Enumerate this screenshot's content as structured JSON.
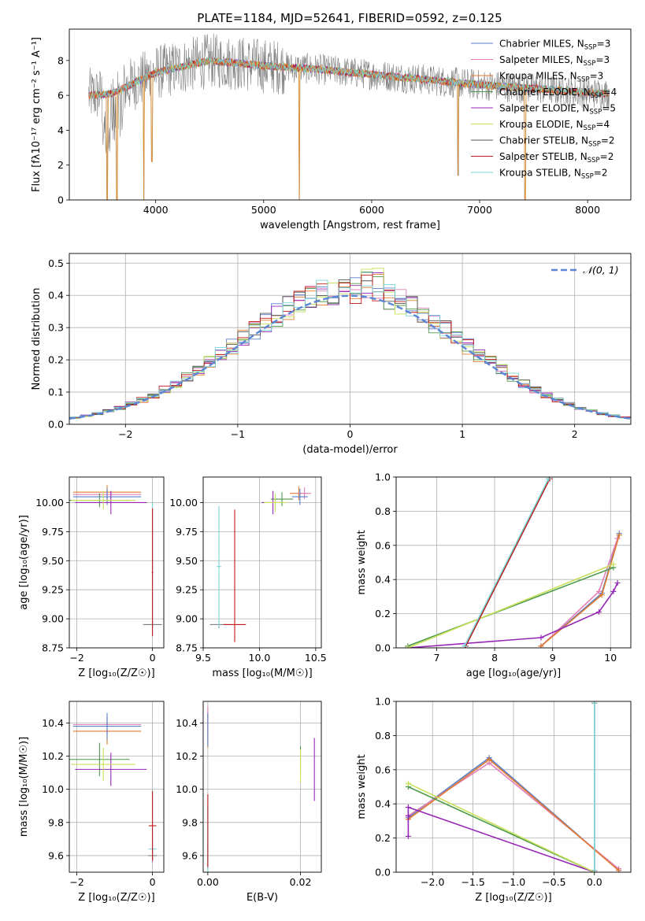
{
  "figure_title": "PLATE=1184, MJD=52641, FIBERID=0592, z=0.125",
  "colors": {
    "chabrier_miles": "#5b7ec9",
    "salpeter_miles": "#e07fb8",
    "kroupa_miles": "#e07b30",
    "chabrier_elodie": "#4d9a4d",
    "salpeter_elodie": "#9526b4",
    "kroupa_elodie": "#c8e05a",
    "chabrier_stelib": "#7f7f7f",
    "salpeter_stelib": "#c01818",
    "kroupa_stelib": "#78d6d9",
    "normal_curve": "#5b86d6"
  },
  "chart_data": [
    {
      "id": "spectrum",
      "type": "line",
      "title": "PLATE=1184, MJD=52641, FIBERID=0592, z=0.125",
      "xlabel": "wavelength [Angstrom, rest frame]",
      "ylabel": "Flux [fλ10⁻¹⁷ erg cm⁻² s⁻¹ A⁻¹]",
      "xlim": [
        3200,
        8400
      ],
      "ylim": [
        0,
        9.8
      ],
      "xticks": [
        4000,
        5000,
        6000,
        7000,
        8000
      ],
      "yticks": [
        0,
        2,
        4,
        6,
        8
      ],
      "grid": false,
      "legend": "right",
      "x_range": [
        3380,
        8200
      ],
      "continuum_anchors": {
        "x": [
          3380,
          3600,
          4000,
          4500,
          5000,
          5500,
          6000,
          6500,
          7000,
          7500,
          8000,
          8200
        ],
        "y": [
          6.0,
          6.1,
          7.3,
          8.0,
          7.7,
          7.5,
          7.2,
          6.9,
          6.6,
          6.4,
          6.15,
          6.1
        ]
      },
      "absorption_lines": [
        {
          "x": 3550,
          "y": 0
        },
        {
          "x": 3640,
          "y": 0
        },
        {
          "x": 3890,
          "y": 0
        },
        {
          "x": 3965,
          "y": 2.2
        },
        {
          "x": 5330,
          "y": 0
        },
        {
          "x": 6800,
          "y": 1.4
        },
        {
          "x": 7420,
          "y": 0
        }
      ],
      "series": [
        {
          "name": "Chabrier MILES, N",
          "sub": "SSP",
          "eq": "=3",
          "color": "#5b7ec9"
        },
        {
          "name": "Salpeter MILES, N",
          "sub": "SSP",
          "eq": "=3",
          "color": "#e07fb8"
        },
        {
          "name": "Kroupa MILES, N",
          "sub": "SSP",
          "eq": "=3",
          "color": "#e07b30"
        },
        {
          "name": "Chabrier ELODIE, N",
          "sub": "SSP",
          "eq": "=4",
          "color": "#4d9a4d"
        },
        {
          "name": "Salpeter ELODIE, N",
          "sub": "SSP",
          "eq": "=5",
          "color": "#9526b4"
        },
        {
          "name": "Kroupa ELODIE, N",
          "sub": "SSP",
          "eq": "=4",
          "color": "#c8e05a"
        },
        {
          "name": "Chabrier STELIB, N",
          "sub": "SSP",
          "eq": "=2",
          "color": "#555555"
        },
        {
          "name": "Salpeter STELIB, N",
          "sub": "SSP",
          "eq": "=2",
          "color": "#c01818"
        },
        {
          "name": "Kroupa STELIB, N",
          "sub": "SSP",
          "eq": "=2",
          "color": "#78d6d9"
        }
      ]
    },
    {
      "id": "residuals",
      "type": "bar",
      "xlabel": "(data-model)/error",
      "ylabel": "Normed distribution",
      "xlim": [
        -2.5,
        2.5
      ],
      "ylim": [
        0,
        0.53
      ],
      "xticks": [
        -2,
        -1,
        0,
        1,
        2
      ],
      "yticks": [
        0.0,
        0.1,
        0.2,
        0.3,
        0.4,
        0.5
      ],
      "grid": true,
      "legend": "top-right",
      "legend_label": "𝒩(0, 1)",
      "bin_width": 0.1,
      "bin_start": -2.5,
      "base_heights": [
        0.02,
        0.02,
        0.025,
        0.03,
        0.035,
        0.04,
        0.045,
        0.05,
        0.06,
        0.07,
        0.085,
        0.1,
        0.11,
        0.125,
        0.14,
        0.16,
        0.175,
        0.195,
        0.21,
        0.23,
        0.26,
        0.285,
        0.31,
        0.34,
        0.355,
        0.375,
        0.385,
        0.395,
        0.41,
        0.42,
        0.4,
        0.415,
        0.43,
        0.4,
        0.39,
        0.36,
        0.345,
        0.33,
        0.31,
        0.285,
        0.27,
        0.26,
        0.245,
        0.22,
        0.2,
        0.18,
        0.16,
        0.145,
        0.13,
        0.115,
        0.1,
        0.09,
        0.08,
        0.075,
        0.07,
        0.06,
        0.05,
        0.045,
        0.04,
        0.035,
        0.03,
        0.025,
        0.02,
        0.02,
        0.018,
        0.015,
        0.013,
        0.012,
        0.011,
        0.01,
        0.01,
        0.01,
        0.01,
        0.01,
        0.01,
        0.01,
        0.01,
        0.01,
        0.01,
        0.01,
        0.01,
        0.01,
        0.01,
        0.01,
        0.01,
        0.01,
        0.01,
        0.01,
        0.01,
        0.01,
        0.01,
        0.01,
        0.01,
        0.01,
        0.01,
        0.01,
        0.01,
        0.01,
        0.01,
        0.01
      ],
      "series_count": 9
    },
    {
      "id": "age_vs_Z",
      "type": "scatter",
      "xlabel": "Z [log₁₀(Z/Z☉)]",
      "ylabel": "age  [log₁₀(age/yr)]",
      "xlim": [
        -2.2,
        0.3
      ],
      "ylim": [
        8.75,
        10.22
      ],
      "xticks": [
        -2,
        0
      ],
      "yticks": [
        8.75,
        9.0,
        9.25,
        9.5,
        9.75,
        10.0
      ],
      "grid": true,
      "points": [
        {
          "x": -1.2,
          "y": 10.09,
          "xerr": 0.9,
          "yerr": 0.06,
          "color": "#e07b30"
        },
        {
          "x": -1.2,
          "y": 10.07,
          "xerr": 0.9,
          "yerr": 0.05,
          "color": "#e07fb8"
        },
        {
          "x": -1.2,
          "y": 10.05,
          "xerr": 0.9,
          "yerr": 0.07,
          "color": "#5b7ec9"
        },
        {
          "x": -1.4,
          "y": 10.02,
          "xerr": 0.8,
          "yerr": 0.06,
          "color": "#4d9a4d"
        },
        {
          "x": -1.1,
          "y": 10.0,
          "xerr": 0.95,
          "yerr": 0.1,
          "color": "#9526b4"
        },
        {
          "x": -1.3,
          "y": 10.02,
          "xerr": 0.85,
          "yerr": 0.08,
          "color": "#c8e05a"
        },
        {
          "x": 0.0,
          "y": 8.95,
          "xerr": 0.25,
          "yerr": 0.03,
          "color": "#7f7f7f"
        },
        {
          "x": 0.0,
          "y": 9.5,
          "xerr": 0.02,
          "yerr": 0.5,
          "color": "#78d6d9"
        },
        {
          "x": 0.0,
          "y": 9.4,
          "xerr": 0.02,
          "yerr": 0.55,
          "color": "#c01818"
        }
      ]
    },
    {
      "id": "age_vs_mass",
      "type": "scatter",
      "xlabel": "mass [log₁₀(M/M☉)]",
      "ylabel": "",
      "xlim": [
        9.5,
        10.55
      ],
      "ylim": [
        8.75,
        10.22
      ],
      "xticks": [
        9.5,
        10.0,
        10.5
      ],
      "yticks": [
        8.75,
        9.0,
        9.25,
        9.5,
        9.75,
        10.0
      ],
      "grid": true,
      "points": [
        {
          "x": 10.35,
          "y": 10.08,
          "xerr": 0.08,
          "yerr": 0.06,
          "color": "#e07b30"
        },
        {
          "x": 10.4,
          "y": 10.08,
          "xerr": 0.06,
          "yerr": 0.05,
          "color": "#e07fb8"
        },
        {
          "x": 10.36,
          "y": 10.05,
          "xerr": 0.07,
          "yerr": 0.07,
          "color": "#5b7ec9"
        },
        {
          "x": 10.2,
          "y": 10.03,
          "xerr": 0.1,
          "yerr": 0.06,
          "color": "#4d9a4d"
        },
        {
          "x": 10.12,
          "y": 10.0,
          "xerr": 0.1,
          "yerr": 0.1,
          "color": "#9526b4"
        },
        {
          "x": 10.14,
          "y": 10.0,
          "xerr": 0.1,
          "yerr": 0.08,
          "color": "#c8e05a"
        },
        {
          "x": 9.64,
          "y": 8.95,
          "xerr": 0.08,
          "yerr": 0.03,
          "color": "#7f7f7f"
        },
        {
          "x": 9.64,
          "y": 9.45,
          "xerr": 0.02,
          "yerr": 0.52,
          "color": "#78d6d9"
        },
        {
          "x": 9.78,
          "y": 8.95,
          "xerr": 0.1,
          "yerr": 0.0,
          "color": "#c01818"
        },
        {
          "x": 9.78,
          "y": 9.37,
          "xerr": 0.0,
          "yerr": 0.57,
          "color": "#c01818"
        }
      ]
    },
    {
      "id": "weight_vs_age",
      "type": "line",
      "xlabel": "age  [log₁₀(age/yr)]",
      "ylabel": "mass weight",
      "xlim": [
        6.3,
        10.35
      ],
      "ylim": [
        0.0,
        1.0
      ],
      "xticks": [
        7,
        8,
        9,
        10
      ],
      "yticks": [
        0.0,
        0.2,
        0.4,
        0.6,
        0.8,
        1.0
      ],
      "grid": true,
      "series": [
        {
          "color": "#5b7ec9",
          "x": [
            8.8,
            9.85,
            10.15
          ],
          "y": [
            0.01,
            0.32,
            0.67
          ]
        },
        {
          "color": "#e07fb8",
          "x": [
            8.8,
            9.8,
            10.12
          ],
          "y": [
            0.01,
            0.33,
            0.64
          ]
        },
        {
          "color": "#e07b30",
          "x": [
            8.8,
            9.85,
            10.15
          ],
          "y": [
            0.01,
            0.31,
            0.66
          ]
        },
        {
          "color": "#4d9a4d",
          "x": [
            6.5,
            10.05
          ],
          "y": [
            0.01,
            0.47
          ]
        },
        {
          "color": "#9526b4",
          "x": [
            6.5,
            8.8,
            9.8,
            10.05,
            10.12
          ],
          "y": [
            0.0,
            0.06,
            0.21,
            0.33,
            0.38
          ]
        },
        {
          "color": "#c8e05a",
          "x": [
            6.5,
            10.05
          ],
          "y": [
            0.0,
            0.49
          ]
        },
        {
          "color": "#7f7f7f",
          "x": [
            7.5,
            8.95
          ],
          "y": [
            0.01,
            0.99
          ]
        },
        {
          "color": "#c01818",
          "x": [
            7.5,
            8.95
          ],
          "y": [
            0.01,
            0.99
          ]
        },
        {
          "color": "#78d6d9",
          "x": [
            7.48,
            8.93
          ],
          "y": [
            0.01,
            0.99
          ]
        }
      ]
    },
    {
      "id": "mass_vs_Z",
      "type": "scatter",
      "xlabel": "Z [log₁₀(Z/Z☉)]",
      "ylabel": "mass [log₁₀(M/M☉)]",
      "xlim": [
        -2.2,
        0.3
      ],
      "ylim": [
        9.5,
        10.53
      ],
      "xticks": [
        -2,
        0
      ],
      "yticks": [
        9.6,
        9.8,
        10.0,
        10.2,
        10.4
      ],
      "grid": true,
      "points": [
        {
          "x": -1.2,
          "y": 10.35,
          "xerr": 0.9,
          "yerr": 0.08,
          "color": "#e07b30"
        },
        {
          "x": -1.2,
          "y": 10.39,
          "xerr": 0.9,
          "yerr": 0.06,
          "color": "#e07fb8"
        },
        {
          "x": -1.2,
          "y": 10.38,
          "xerr": 0.9,
          "yerr": 0.08,
          "color": "#5b7ec9"
        },
        {
          "x": -1.4,
          "y": 10.18,
          "xerr": 0.8,
          "yerr": 0.1,
          "color": "#4d9a4d"
        },
        {
          "x": -1.1,
          "y": 10.12,
          "xerr": 0.95,
          "yerr": 0.1,
          "color": "#9526b4"
        },
        {
          "x": -1.3,
          "y": 10.15,
          "xerr": 0.85,
          "yerr": 0.1,
          "color": "#c8e05a"
        },
        {
          "x": 0.0,
          "y": 9.6,
          "xerr": 0.12,
          "yerr": 0.04,
          "color": "#7f7f7f"
        },
        {
          "x": 0.0,
          "y": 9.64,
          "xerr": 0.1,
          "yerr": 0.07,
          "color": "#78d6d9"
        },
        {
          "x": 0.0,
          "y": 9.78,
          "xerr": 0.1,
          "yerr": 0.21,
          "color": "#c01818"
        }
      ]
    },
    {
      "id": "mass_vs_ebv",
      "type": "scatter",
      "xlabel": "E(B-V)",
      "ylabel": "",
      "xlim": [
        -0.001,
        0.0245
      ],
      "ylim": [
        9.5,
        10.53
      ],
      "xticks": [
        0.0,
        0.02
      ],
      "yticks": [
        9.6,
        9.8,
        10.0,
        10.2,
        10.4
      ],
      "grid": true,
      "points": [
        {
          "x": 0.0,
          "y": 10.35,
          "xerr": 0.0,
          "yerr": 0.1,
          "color": "#e07b30"
        },
        {
          "x": 0.0,
          "y": 10.42,
          "xerr": 0.0,
          "yerr": 0.08,
          "color": "#e07fb8"
        },
        {
          "x": 0.0,
          "y": 10.36,
          "xerr": 0.0,
          "yerr": 0.1,
          "color": "#5b7ec9"
        },
        {
          "x": 0.02,
          "y": 10.18,
          "xerr": 0.0,
          "yerr": 0.08,
          "color": "#4d9a4d"
        },
        {
          "x": 0.023,
          "y": 10.12,
          "xerr": 0.0,
          "yerr": 0.19,
          "color": "#9526b4"
        },
        {
          "x": 0.02,
          "y": 10.14,
          "xerr": 0.0,
          "yerr": 0.1,
          "color": "#c8e05a"
        },
        {
          "x": 0.0,
          "y": 9.6,
          "xerr": 0.0,
          "yerr": 0.08,
          "color": "#7f7f7f"
        },
        {
          "x": 0.0,
          "y": 9.7,
          "xerr": 0.0,
          "yerr": 0.2,
          "color": "#78d6d9"
        },
        {
          "x": 0.0,
          "y": 9.75,
          "xerr": 0.0,
          "yerr": 0.22,
          "color": "#c01818"
        }
      ]
    },
    {
      "id": "weight_vs_Z",
      "type": "line",
      "xlabel": "Z [log₁₀(Z/Z☉)]",
      "ylabel": "mass weight",
      "xlim": [
        -2.45,
        0.45
      ],
      "ylim": [
        0.0,
        1.0
      ],
      "xticks": [
        -2.0,
        -1.5,
        -1.0,
        -0.5,
        0.0
      ],
      "yticks": [
        0.0,
        0.2,
        0.4,
        0.6,
        0.8,
        1.0
      ],
      "grid": true,
      "series": [
        {
          "color": "#5b7ec9",
          "x": [
            -2.3,
            -1.3,
            0.3
          ],
          "y": [
            0.32,
            0.67,
            0.01
          ]
        },
        {
          "color": "#e07fb8",
          "x": [
            -2.3,
            -1.3,
            0.3
          ],
          "y": [
            0.33,
            0.64,
            0.02
          ]
        },
        {
          "color": "#e07b30",
          "x": [
            -2.3,
            -1.3,
            0.3
          ],
          "y": [
            0.31,
            0.66,
            0.01
          ]
        },
        {
          "color": "#4d9a4d",
          "x": [
            -2.3,
            0.0
          ],
          "y": [
            0.5,
            0.0
          ]
        },
        {
          "color": "#9526b4",
          "x": [
            -2.3,
            -2.3,
            -2.3,
            0.0
          ],
          "y": [
            0.21,
            0.33,
            0.38,
            0.0
          ]
        },
        {
          "color": "#c8e05a",
          "x": [
            -2.3,
            0.0
          ],
          "y": [
            0.52,
            0.0
          ]
        },
        {
          "color": "#7f7f7f",
          "x": [
            0.0,
            0.0
          ],
          "y": [
            0.01,
            0.99
          ]
        },
        {
          "color": "#c01818",
          "x": [
            0.0,
            0.0
          ],
          "y": [
            0.01,
            0.99
          ]
        },
        {
          "color": "#78d6d9",
          "x": [
            0.0,
            0.0
          ],
          "y": [
            0.01,
            0.99
          ]
        }
      ]
    }
  ]
}
